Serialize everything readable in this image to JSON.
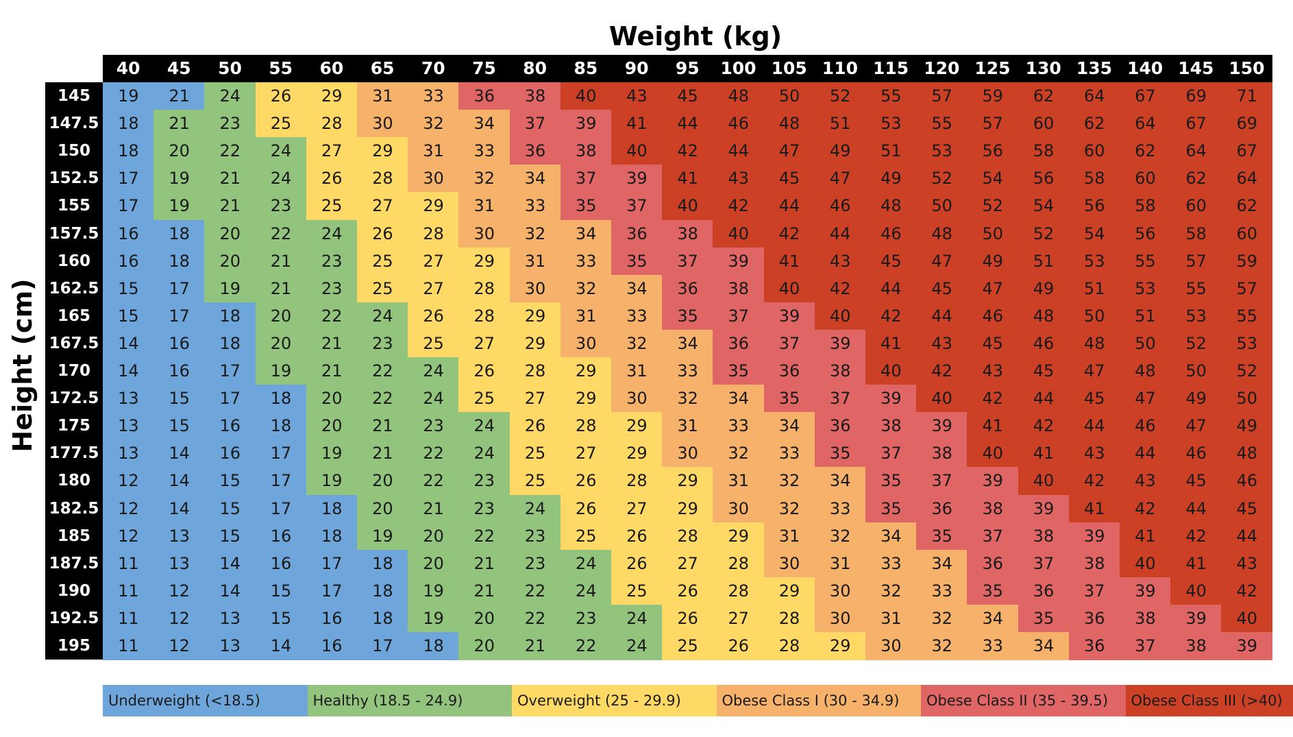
{
  "chart_data": {
    "type": "heatmap",
    "xlabel": "Weight (kg)",
    "ylabel": "Height (cm)",
    "weights": [
      40,
      45,
      50,
      55,
      60,
      65,
      70,
      75,
      80,
      85,
      90,
      95,
      100,
      105,
      110,
      115,
      120,
      125,
      130,
      135,
      140,
      145,
      150
    ],
    "heights": [
      "145",
      "147.5",
      "150",
      "152.5",
      "155",
      "157.5",
      "160",
      "162.5",
      "165",
      "167.5",
      "170",
      "172.5",
      "175",
      "177.5",
      "180",
      "182.5",
      "185",
      "187.5",
      "190",
      "192.5",
      "195"
    ],
    "values": [
      [
        19,
        21,
        24,
        26,
        29,
        31,
        33,
        36,
        38,
        40,
        43,
        45,
        48,
        50,
        52,
        55,
        57,
        59,
        62,
        64,
        67,
        69,
        71
      ],
      [
        18,
        21,
        23,
        25,
        28,
        30,
        32,
        34,
        37,
        39,
        41,
        44,
        46,
        48,
        51,
        53,
        55,
        57,
        60,
        62,
        64,
        67,
        69
      ],
      [
        18,
        20,
        22,
        24,
        27,
        29,
        31,
        33,
        36,
        38,
        40,
        42,
        44,
        47,
        49,
        51,
        53,
        56,
        58,
        60,
        62,
        64,
        67
      ],
      [
        17,
        19,
        21,
        24,
        26,
        28,
        30,
        32,
        34,
        37,
        39,
        41,
        43,
        45,
        47,
        49,
        52,
        54,
        56,
        58,
        60,
        62,
        64
      ],
      [
        17,
        19,
        21,
        23,
        25,
        27,
        29,
        31,
        33,
        35,
        37,
        40,
        42,
        44,
        46,
        48,
        50,
        52,
        54,
        56,
        58,
        60,
        62
      ],
      [
        16,
        18,
        20,
        22,
        24,
        26,
        28,
        30,
        32,
        34,
        36,
        38,
        40,
        42,
        44,
        46,
        48,
        50,
        52,
        54,
        56,
        58,
        60
      ],
      [
        16,
        18,
        20,
        21,
        23,
        25,
        27,
        29,
        31,
        33,
        35,
        37,
        39,
        41,
        43,
        45,
        47,
        49,
        51,
        53,
        55,
        57,
        59
      ],
      [
        15,
        17,
        19,
        21,
        23,
        25,
        27,
        28,
        30,
        32,
        34,
        36,
        38,
        40,
        42,
        44,
        45,
        47,
        49,
        51,
        53,
        55,
        57
      ],
      [
        15,
        17,
        18,
        20,
        22,
        24,
        26,
        28,
        29,
        31,
        33,
        35,
        37,
        39,
        40,
        42,
        44,
        46,
        48,
        50,
        51,
        53,
        55
      ],
      [
        14,
        16,
        18,
        20,
        21,
        23,
        25,
        27,
        29,
        30,
        32,
        34,
        36,
        37,
        39,
        41,
        43,
        45,
        46,
        48,
        50,
        52,
        53
      ],
      [
        14,
        16,
        17,
        19,
        21,
        22,
        24,
        26,
        28,
        29,
        31,
        33,
        35,
        36,
        38,
        40,
        42,
        43,
        45,
        47,
        48,
        50,
        52
      ],
      [
        13,
        15,
        17,
        18,
        20,
        22,
        24,
        25,
        27,
        29,
        30,
        32,
        34,
        35,
        37,
        39,
        40,
        42,
        44,
        45,
        47,
        49,
        50
      ],
      [
        13,
        15,
        16,
        18,
        20,
        21,
        23,
        24,
        26,
        28,
        29,
        31,
        33,
        34,
        36,
        38,
        39,
        41,
        42,
        44,
        46,
        47,
        49
      ],
      [
        13,
        14,
        16,
        17,
        19,
        21,
        22,
        24,
        25,
        27,
        29,
        30,
        32,
        33,
        35,
        37,
        38,
        40,
        41,
        43,
        44,
        46,
        48
      ],
      [
        12,
        14,
        15,
        17,
        19,
        20,
        22,
        23,
        25,
        26,
        28,
        29,
        31,
        32,
        34,
        35,
        37,
        39,
        40,
        42,
        43,
        45,
        46
      ],
      [
        12,
        14,
        15,
        17,
        18,
        20,
        21,
        23,
        24,
        26,
        27,
        29,
        30,
        32,
        33,
        35,
        36,
        38,
        39,
        41,
        42,
        44,
        45
      ],
      [
        12,
        13,
        15,
        16,
        18,
        19,
        20,
        22,
        23,
        25,
        26,
        28,
        29,
        31,
        32,
        34,
        35,
        37,
        38,
        39,
        41,
        42,
        44
      ],
      [
        11,
        13,
        14,
        16,
        17,
        18,
        20,
        21,
        23,
        24,
        26,
        27,
        28,
        30,
        31,
        33,
        34,
        36,
        37,
        38,
        40,
        41,
        43
      ],
      [
        11,
        12,
        14,
        15,
        17,
        18,
        19,
        21,
        22,
        24,
        25,
        26,
        28,
        29,
        30,
        32,
        33,
        35,
        36,
        37,
        39,
        40,
        42
      ],
      [
        11,
        12,
        13,
        15,
        16,
        18,
        19,
        20,
        22,
        23,
        24,
        26,
        27,
        28,
        30,
        31,
        32,
        34,
        35,
        36,
        38,
        39,
        40
      ],
      [
        11,
        12,
        13,
        14,
        16,
        17,
        18,
        20,
        21,
        22,
        24,
        25,
        26,
        28,
        29,
        30,
        32,
        33,
        34,
        36,
        37,
        38,
        39
      ]
    ],
    "categories": [
      [
        0,
        0,
        1,
        2,
        2,
        3,
        3,
        4,
        4,
        5,
        5,
        5,
        5,
        5,
        5,
        5,
        5,
        5,
        5,
        5,
        5,
        5,
        5
      ],
      [
        0,
        1,
        1,
        2,
        2,
        3,
        3,
        3,
        4,
        4,
        5,
        5,
        5,
        5,
        5,
        5,
        5,
        5,
        5,
        5,
        5,
        5,
        5
      ],
      [
        0,
        1,
        1,
        1,
        2,
        2,
        3,
        3,
        4,
        4,
        5,
        5,
        5,
        5,
        5,
        5,
        5,
        5,
        5,
        5,
        5,
        5,
        5
      ],
      [
        0,
        1,
        1,
        1,
        2,
        2,
        3,
        3,
        3,
        4,
        4,
        5,
        5,
        5,
        5,
        5,
        5,
        5,
        5,
        5,
        5,
        5,
        5
      ],
      [
        0,
        1,
        1,
        1,
        2,
        2,
        2,
        3,
        3,
        4,
        4,
        5,
        5,
        5,
        5,
        5,
        5,
        5,
        5,
        5,
        5,
        5,
        5
      ],
      [
        0,
        0,
        1,
        1,
        1,
        2,
        2,
        3,
        3,
        3,
        4,
        4,
        5,
        5,
        5,
        5,
        5,
        5,
        5,
        5,
        5,
        5,
        5
      ],
      [
        0,
        0,
        1,
        1,
        1,
        2,
        2,
        2,
        3,
        3,
        4,
        4,
        4,
        5,
        5,
        5,
        5,
        5,
        5,
        5,
        5,
        5,
        5
      ],
      [
        0,
        0,
        1,
        1,
        1,
        2,
        2,
        2,
        3,
        3,
        3,
        4,
        4,
        5,
        5,
        5,
        5,
        5,
        5,
        5,
        5,
        5,
        5
      ],
      [
        0,
        0,
        0,
        1,
        1,
        1,
        2,
        2,
        2,
        3,
        3,
        4,
        4,
        4,
        5,
        5,
        5,
        5,
        5,
        5,
        5,
        5,
        5
      ],
      [
        0,
        0,
        0,
        1,
        1,
        1,
        2,
        2,
        2,
        3,
        3,
        3,
        4,
        4,
        4,
        5,
        5,
        5,
        5,
        5,
        5,
        5,
        5
      ],
      [
        0,
        0,
        0,
        1,
        1,
        1,
        1,
        2,
        2,
        2,
        3,
        3,
        4,
        4,
        4,
        5,
        5,
        5,
        5,
        5,
        5,
        5,
        5
      ],
      [
        0,
        0,
        0,
        0,
        1,
        1,
        1,
        2,
        2,
        2,
        3,
        3,
        3,
        4,
        4,
        4,
        5,
        5,
        5,
        5,
        5,
        5,
        5
      ],
      [
        0,
        0,
        0,
        0,
        1,
        1,
        1,
        1,
        2,
        2,
        2,
        3,
        3,
        3,
        4,
        4,
        4,
        5,
        5,
        5,
        5,
        5,
        5
      ],
      [
        0,
        0,
        0,
        0,
        1,
        1,
        1,
        1,
        2,
        2,
        2,
        3,
        3,
        3,
        4,
        4,
        4,
        5,
        5,
        5,
        5,
        5,
        5
      ],
      [
        0,
        0,
        0,
        0,
        1,
        1,
        1,
        1,
        2,
        2,
        2,
        2,
        3,
        3,
        3,
        4,
        4,
        4,
        5,
        5,
        5,
        5,
        5
      ],
      [
        0,
        0,
        0,
        0,
        0,
        1,
        1,
        1,
        1,
        2,
        2,
        2,
        3,
        3,
        3,
        4,
        4,
        4,
        4,
        5,
        5,
        5,
        5
      ],
      [
        0,
        0,
        0,
        0,
        0,
        1,
        1,
        1,
        1,
        2,
        2,
        2,
        2,
        3,
        3,
        3,
        4,
        4,
        4,
        4,
        5,
        5,
        5
      ],
      [
        0,
        0,
        0,
        0,
        0,
        0,
        1,
        1,
        1,
        1,
        2,
        2,
        2,
        3,
        3,
        3,
        3,
        4,
        4,
        4,
        5,
        5,
        5
      ],
      [
        0,
        0,
        0,
        0,
        0,
        0,
        1,
        1,
        1,
        1,
        2,
        2,
        2,
        2,
        3,
        3,
        3,
        4,
        4,
        4,
        4,
        5,
        5
      ],
      [
        0,
        0,
        0,
        0,
        0,
        0,
        1,
        1,
        1,
        1,
        1,
        2,
        2,
        2,
        3,
        3,
        3,
        3,
        4,
        4,
        4,
        4,
        5
      ],
      [
        0,
        0,
        0,
        0,
        0,
        0,
        0,
        1,
        1,
        1,
        1,
        2,
        2,
        2,
        2,
        3,
        3,
        3,
        3,
        4,
        4,
        4,
        4
      ]
    ],
    "legend": [
      {
        "label": "Underweight (<18.5)",
        "color": "#6ea6dc"
      },
      {
        "label": "Healthy (18.5 - 24.9)",
        "color": "#93c47d"
      },
      {
        "label": "Overweight (25 - 29.9)",
        "color": "#ffd966"
      },
      {
        "label": "Obese Class I (30 - 34.9)",
        "color": "#f6b26b"
      },
      {
        "label": "Obese Class II (35 - 39.5)",
        "color": "#e06666"
      },
      {
        "label": "Obese Class III (>40)",
        "color": "#cc4125"
      }
    ],
    "legend_colors_light": [
      "#9fc5e8",
      "#b6d7a8",
      "#ffe599",
      "#f9cb9c",
      "#ea9999",
      "#dd7e6b"
    ],
    "legend_placement": "bottom"
  }
}
